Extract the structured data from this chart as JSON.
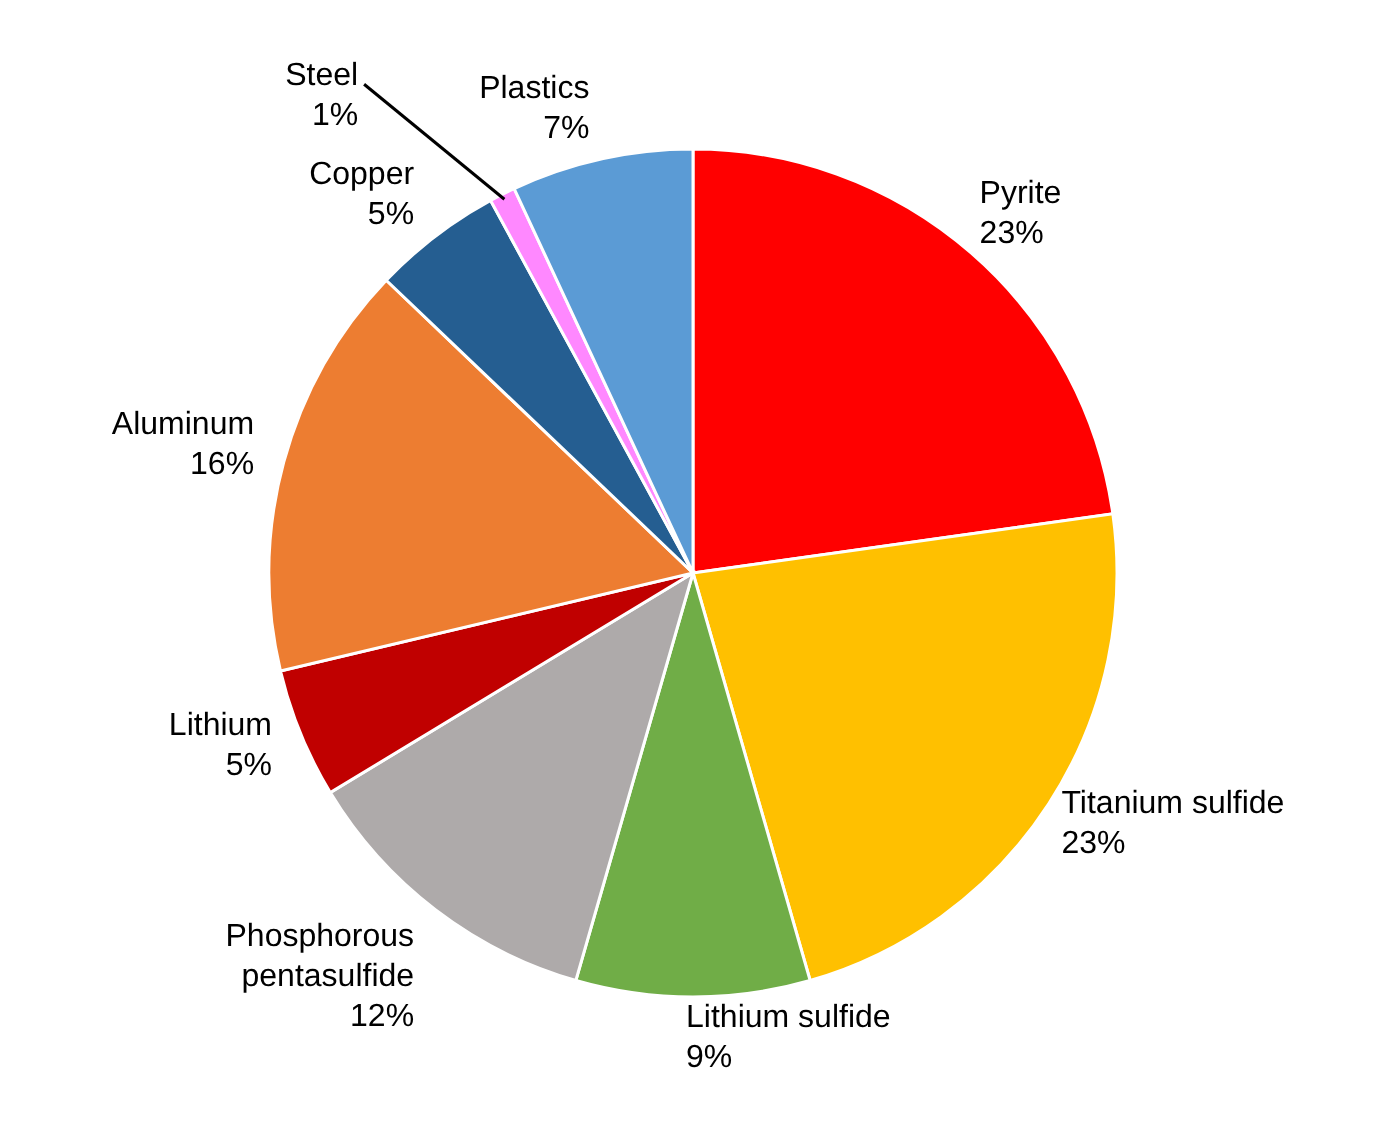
{
  "chart_data": {
    "type": "pie",
    "categories": [
      "Pyrite",
      "Titanium sulfide",
      "Lithium sulfide",
      "Phosphorous pentasulfide",
      "Lithium",
      "Aluminum",
      "Copper",
      "Steel",
      "Plastics"
    ],
    "values": [
      23,
      23,
      9,
      12,
      5,
      16,
      5,
      1,
      7
    ],
    "value_labels": [
      "23%",
      "23%",
      "9%",
      "12%",
      "5%",
      "16%",
      "5%",
      "1%",
      "7%"
    ],
    "colors": [
      "#ff0000",
      "#ffc000",
      "#70ad47",
      "#aeaaaa",
      "#c00000",
      "#ed7d31",
      "#255e91",
      "#ff88ff",
      "#5b9bd5"
    ]
  }
}
